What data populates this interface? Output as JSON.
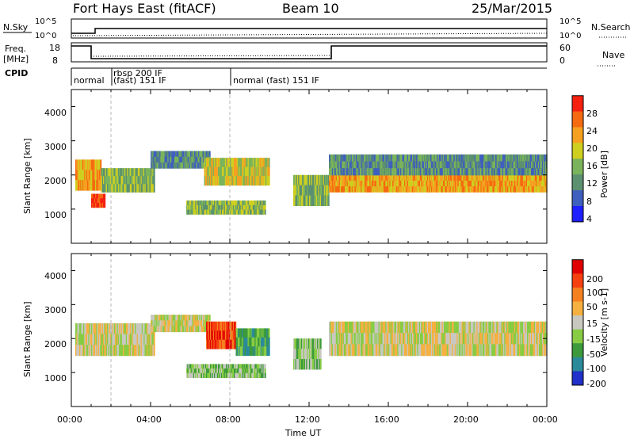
{
  "header": {
    "station": "Fort Hays East (fitACF)",
    "beam": "Beam 10",
    "date": "25/Mar/2015"
  },
  "noise_panel": {
    "left_label": "N.Sky",
    "right_label": "N.Search",
    "left_ticks": [
      "10^5",
      "10^0"
    ],
    "right_ticks": [
      "10^5",
      "10^0"
    ]
  },
  "freq_panel": {
    "left_label_1": "Freq.",
    "left_label_2": "[MHz]",
    "right_label": "Nave",
    "left_ticks": [
      "18",
      "8"
    ],
    "right_ticks": [
      "60",
      "0"
    ]
  },
  "cpid_panel": {
    "label": "CPID",
    "segments": [
      "normal",
      "rbsp 200 IF",
      "(fast) 151 IF",
      "normal (fast) 151 IF"
    ]
  },
  "chart_data": [
    {
      "type": "heatmap",
      "title": "",
      "xlabel": "Time UT",
      "ylabel": "Slant Range [km]",
      "x_ticks": [
        "00:00",
        "04:00",
        "08:00",
        "12:00",
        "16:00",
        "20:00",
        "00:00"
      ],
      "y_ticks": [
        "1000",
        "2000",
        "3000",
        "4000"
      ],
      "ylim": [
        0,
        4500
      ],
      "colorbar_label": "Power [dB]",
      "colorbar_ticks": [
        "4",
        "8",
        "12",
        "16",
        "20",
        "24",
        "28"
      ],
      "colorbar_colors": [
        "#1e1eff",
        "#3f5fbf",
        "#5b9070",
        "#7ab35b",
        "#cfcf20",
        "#f5a020",
        "#f56a10",
        "#f52010"
      ],
      "regions": [
        {
          "t0": 0.2,
          "t1": 1.5,
          "r0": 1550,
          "r1": 2450,
          "level": 5
        },
        {
          "t0": 1.0,
          "t1": 1.7,
          "r0": 1050,
          "r1": 1450,
          "level": 7
        },
        {
          "t0": 1.5,
          "t1": 4.2,
          "r0": 1500,
          "r1": 2200,
          "level": 3
        },
        {
          "t0": 4.0,
          "t1": 7.0,
          "r0": 2200,
          "r1": 2700,
          "level": 2
        },
        {
          "t0": 6.7,
          "t1": 10.0,
          "r0": 1700,
          "r1": 2500,
          "level": 4
        },
        {
          "t0": 5.8,
          "t1": 9.8,
          "r0": 850,
          "r1": 1250,
          "level": 3
        },
        {
          "t0": 11.2,
          "t1": 13.0,
          "r0": 1100,
          "r1": 2000,
          "level": 3
        },
        {
          "t0": 13.0,
          "t1": 24.0,
          "r0": 1500,
          "r1": 2000,
          "level": 5
        },
        {
          "t0": 13.0,
          "t1": 24.0,
          "r0": 2000,
          "r1": 2600,
          "level": 2
        }
      ]
    },
    {
      "type": "heatmap",
      "title": "",
      "xlabel": "Time UT",
      "ylabel": "Slant Range [km]",
      "x_ticks": [
        "00:00",
        "04:00",
        "08:00",
        "12:00",
        "16:00",
        "20:00",
        "00:00"
      ],
      "y_ticks": [
        "1000",
        "2000",
        "3000",
        "4000"
      ],
      "ylim": [
        0,
        4500
      ],
      "colorbar_label": "Velocity [m s-1]",
      "colorbar_ticks": [
        "200",
        "100",
        "50",
        "15",
        "-15",
        "-50",
        "-100",
        "-200"
      ],
      "colorbar_colors": [
        "#2030c8",
        "#2a8a9a",
        "#3c9a3c",
        "#88cc44",
        "#c8c8c0",
        "#f5b040",
        "#f58020",
        "#f54010",
        "#e00000"
      ],
      "regions": [
        {
          "t0": 0.2,
          "t1": 4.2,
          "r0": 1500,
          "r1": 2450,
          "level": 4
        },
        {
          "t0": 4.0,
          "t1": 7.0,
          "r0": 2200,
          "r1": 2700,
          "level": 4
        },
        {
          "t0": 6.8,
          "t1": 8.3,
          "r0": 1700,
          "r1": 2500,
          "level": 7
        },
        {
          "t0": 8.3,
          "t1": 10.0,
          "r0": 1500,
          "r1": 2300,
          "level": 2
        },
        {
          "t0": 5.8,
          "t1": 9.8,
          "r0": 850,
          "r1": 1250,
          "level": 3
        },
        {
          "t0": 11.2,
          "t1": 12.6,
          "r0": 1100,
          "r1": 2000,
          "level": 3
        },
        {
          "t0": 13.0,
          "t1": 24.0,
          "r0": 1500,
          "r1": 2500,
          "level": 4
        }
      ]
    }
  ]
}
